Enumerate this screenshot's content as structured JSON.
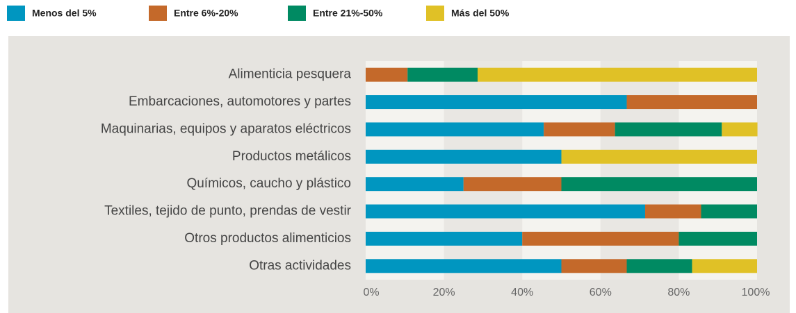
{
  "chart_data": {
    "type": "stacked-barh",
    "categories": [
      "Alimenticia pesquera",
      "Embarcaciones, automotores y partes",
      "Maquinarias, equipos y aparatos eléctricos",
      "Productos metálicos",
      "Químicos, caucho y plástico",
      "Textiles, tejido de punto, prendas de vestir",
      "Otros productos alimenticios",
      "Otras actividades"
    ],
    "series": [
      {
        "name": "Menos del 5%",
        "color": "#0096c0",
        "values": [
          0,
          66.7,
          45.5,
          50,
          25,
          71.4,
          40,
          50
        ]
      },
      {
        "name": "Entre 6%-20%",
        "color": "#c4692a",
        "values": [
          10.7,
          33.3,
          18.2,
          0,
          25,
          14.3,
          40,
          16.7
        ]
      },
      {
        "name": "Entre 21%-50%",
        "color": "#008a62",
        "values": [
          17.9,
          0,
          27.3,
          0,
          50,
          14.3,
          20,
          16.7
        ]
      },
      {
        "name": "Más del 50%",
        "color": "#e0c126",
        "values": [
          71.4,
          0,
          9.1,
          50,
          0,
          0,
          0,
          16.6
        ]
      }
    ],
    "xlim": [
      0,
      100
    ],
    "xticks": [
      {
        "value": 0,
        "label": "0%"
      },
      {
        "value": 20,
        "label": "20%"
      },
      {
        "value": 40,
        "label": "40%"
      },
      {
        "value": 60,
        "label": "60%"
      },
      {
        "value": 80,
        "label": "80%"
      },
      {
        "value": 100,
        "label": "100%"
      }
    ],
    "grid": true,
    "legend": "top"
  }
}
